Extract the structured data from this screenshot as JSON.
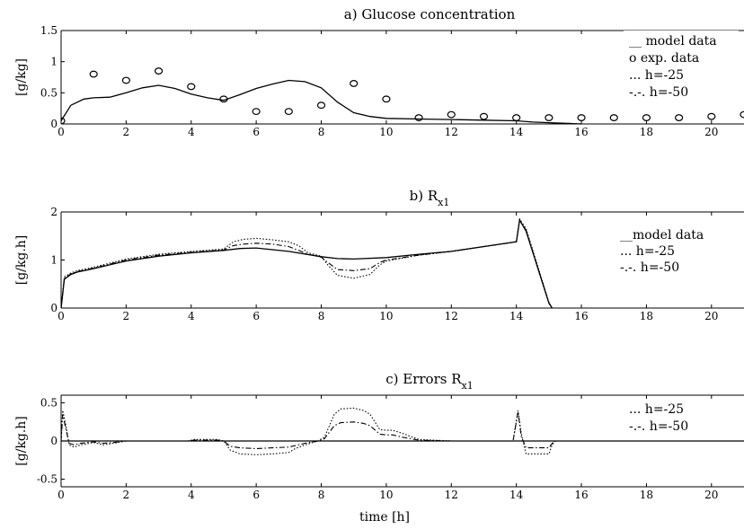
{
  "chart_data": [
    {
      "type": "line",
      "title_main": "a) Glucose concentration",
      "title_sub": "",
      "ylabel": "[g/kg]",
      "xlabel": "",
      "xlim": [
        0,
        21
      ],
      "ylim": [
        0,
        1.5
      ],
      "xticks": [
        "0",
        "2",
        "4",
        "6",
        "8",
        "10",
        "12",
        "14",
        "16",
        "18",
        "20"
      ],
      "yticks": [
        "0",
        "0.5",
        "1",
        "1.5"
      ],
      "grid": false,
      "legend_position": "top-right",
      "legend": [
        "__ model data",
        "o  exp. data",
        "... h=-25",
        "-.-. h=-50"
      ],
      "series": [
        {
          "name": "model data",
          "style": "solid",
          "x": [
            0,
            0.3,
            0.7,
            1,
            1.5,
            2,
            2.5,
            3,
            3.5,
            4,
            4.5,
            5,
            5.5,
            6,
            6.5,
            7,
            7.5,
            8,
            8.5,
            9,
            9.5,
            10,
            11,
            12,
            13,
            14,
            14.5,
            15,
            15.5,
            16
          ],
          "y": [
            0.05,
            0.3,
            0.4,
            0.42,
            0.43,
            0.5,
            0.58,
            0.62,
            0.57,
            0.48,
            0.42,
            0.38,
            0.47,
            0.57,
            0.64,
            0.7,
            0.68,
            0.58,
            0.35,
            0.18,
            0.12,
            0.09,
            0.08,
            0.07,
            0.06,
            0.05,
            0.03,
            0.02,
            0.01,
            0
          ]
        },
        {
          "name": "exp. data",
          "style": "marker",
          "x": [
            0,
            1,
            2,
            3,
            4,
            5,
            6,
            7,
            8,
            9,
            10,
            11,
            12,
            13,
            14,
            15,
            16,
            17,
            18,
            19,
            20,
            21
          ],
          "y": [
            0.05,
            0.8,
            0.7,
            0.85,
            0.6,
            0.4,
            0.2,
            0.2,
            0.3,
            0.65,
            0.4,
            0.1,
            0.15,
            0.12,
            0.1,
            0.1,
            0.1,
            0.1,
            0.1,
            0.1,
            0.12,
            0.15
          ]
        }
      ]
    },
    {
      "type": "line",
      "title_main": "b) R",
      "title_sub": "x1",
      "ylabel": "[g/kg.h]",
      "xlabel": "",
      "xlim": [
        0,
        21
      ],
      "ylim": [
        0,
        2
      ],
      "xticks": [
        "0",
        "2",
        "4",
        "6",
        "8",
        "10",
        "12",
        "14",
        "16",
        "18",
        "20"
      ],
      "yticks": [
        "0",
        "1",
        "2"
      ],
      "grid": false,
      "legend_position": "top-right",
      "legend": [
        "__model data",
        "... h=-25",
        "-.-. h=-50"
      ],
      "series": [
        {
          "name": "model data",
          "style": "solid",
          "x": [
            0,
            0.1,
            0.3,
            0.5,
            1,
            2,
            3,
            4,
            5,
            5.5,
            6,
            7,
            8,
            8.5,
            9,
            10,
            11,
            12,
            13,
            14,
            14.1,
            14.3,
            15,
            15.1
          ],
          "y": [
            0,
            0.6,
            0.7,
            0.75,
            0.82,
            0.98,
            1.08,
            1.15,
            1.2,
            1.24,
            1.25,
            1.18,
            1.07,
            1.03,
            1.02,
            1.05,
            1.12,
            1.18,
            1.28,
            1.38,
            1.83,
            1.6,
            0.1,
            0
          ]
        },
        {
          "name": "h=-25",
          "style": "dotted",
          "x": [
            0,
            0.1,
            0.3,
            0.5,
            1,
            2,
            3,
            4,
            5,
            5.3,
            5.6,
            6,
            6.5,
            7,
            7.3,
            7.6,
            8,
            8.2,
            8.5,
            9,
            9.5,
            9.8,
            10,
            11,
            12,
            13,
            14,
            14.1,
            14.3,
            15,
            15.1
          ],
          "y": [
            0,
            0.65,
            0.73,
            0.78,
            0.85,
            1.02,
            1.12,
            1.18,
            1.23,
            1.38,
            1.43,
            1.45,
            1.42,
            1.38,
            1.3,
            1.15,
            1.08,
            0.9,
            0.68,
            0.62,
            0.7,
            0.9,
            0.98,
            1.1,
            1.18,
            1.28,
            1.38,
            1.85,
            1.65,
            0.12,
            0
          ]
        },
        {
          "name": "h=-50",
          "style": "dashdot",
          "x": [
            0,
            0.1,
            0.3,
            0.5,
            1,
            2,
            3,
            4,
            5,
            5.3,
            5.6,
            6,
            6.5,
            7,
            7.3,
            7.6,
            8,
            8.2,
            8.5,
            9,
            9.5,
            9.8,
            10,
            11,
            12,
            13,
            14,
            14.1,
            14.3,
            15,
            15.1
          ],
          "y": [
            0,
            0.62,
            0.71,
            0.76,
            0.83,
            1.0,
            1.1,
            1.16,
            1.21,
            1.3,
            1.33,
            1.35,
            1.33,
            1.28,
            1.2,
            1.12,
            1.06,
            0.95,
            0.8,
            0.78,
            0.82,
            0.95,
            1.0,
            1.1,
            1.18,
            1.28,
            1.38,
            1.84,
            1.62,
            0.11,
            0
          ]
        }
      ]
    },
    {
      "type": "line",
      "title_main": "c) Errors R",
      "title_sub": "x1",
      "ylabel": "[g/kg.h]",
      "xlabel": "time [h]",
      "xlim": [
        0,
        21
      ],
      "ylim": [
        -0.6,
        0.6
      ],
      "xticks": [
        "0",
        "2",
        "4",
        "6",
        "8",
        "10",
        "12",
        "14",
        "16",
        "18",
        "20"
      ],
      "yticks": [
        "-0.5",
        "0",
        "0.5"
      ],
      "grid": false,
      "legend_position": "top-right",
      "legend": [
        "... h=-25",
        "-.-. h=-50"
      ],
      "series": [
        {
          "name": "zero",
          "style": "solid",
          "x": [
            0,
            21
          ],
          "y": [
            0,
            0
          ]
        },
        {
          "name": "h=-25",
          "style": "dotted",
          "x": [
            0,
            0.05,
            0.15,
            0.25,
            0.4,
            0.6,
            1,
            1.3,
            1.6,
            2,
            3,
            3.9,
            4.1,
            4.8,
            5,
            5.2,
            5.5,
            6,
            6.5,
            7,
            7.2,
            7.5,
            7.9,
            8.1,
            8.4,
            8.6,
            9,
            9.3,
            9.5,
            9.8,
            10,
            10.2,
            10.5,
            11,
            12,
            13,
            13.9,
            14.05,
            14.15,
            14.3,
            15,
            15.1,
            15.2,
            21
          ],
          "y": [
            0,
            0.4,
            0.2,
            -0.05,
            -0.08,
            -0.05,
            -0.02,
            -0.05,
            -0.03,
            0,
            0,
            0,
            0.02,
            0.02,
            0,
            -0.12,
            -0.17,
            -0.18,
            -0.17,
            -0.15,
            -0.1,
            -0.05,
            0,
            0.05,
            0.35,
            0.42,
            0.43,
            0.4,
            0.35,
            0.15,
            0.14,
            0.14,
            0.1,
            0.02,
            0,
            0,
            0,
            0.4,
            0.1,
            -0.17,
            -0.17,
            -0.05,
            0,
            0
          ]
        },
        {
          "name": "h=-50",
          "style": "dashdot",
          "x": [
            0,
            0.05,
            0.15,
            0.25,
            0.4,
            0.6,
            1,
            1.3,
            1.6,
            2,
            3,
            3.9,
            4.1,
            4.8,
            5,
            5.2,
            5.5,
            6,
            6.5,
            7,
            7.2,
            7.5,
            7.9,
            8.1,
            8.4,
            8.6,
            9,
            9.3,
            9.5,
            9.8,
            10,
            10.2,
            10.5,
            11,
            12,
            13,
            13.9,
            14.05,
            14.15,
            14.3,
            15,
            15.1,
            15.2,
            21
          ],
          "y": [
            0,
            0.35,
            0.15,
            -0.03,
            -0.05,
            -0.03,
            -0.01,
            -0.03,
            -0.02,
            0,
            0,
            0,
            0.01,
            0.01,
            0,
            -0.07,
            -0.09,
            -0.1,
            -0.09,
            -0.08,
            -0.06,
            -0.03,
            0,
            0.03,
            0.2,
            0.24,
            0.25,
            0.23,
            0.2,
            0.09,
            0.08,
            0.08,
            0.05,
            0.01,
            0,
            0,
            0,
            0.38,
            0.06,
            -0.09,
            -0.09,
            -0.03,
            0,
            0
          ]
        }
      ]
    }
  ]
}
